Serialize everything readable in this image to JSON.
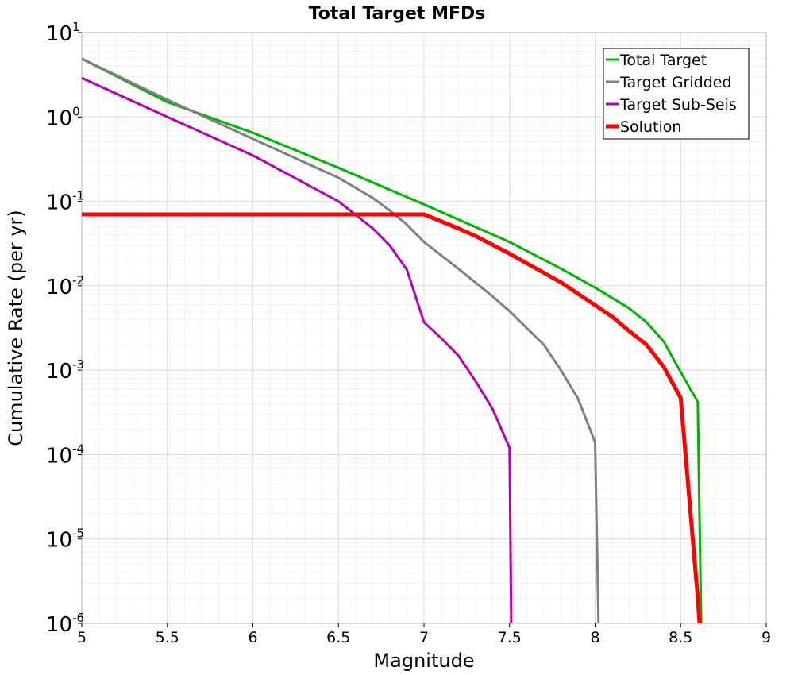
{
  "chart_data": {
    "type": "line",
    "title": "Total Target MFDs",
    "xlabel": "Magnitude",
    "ylabel": "Cumulative Rate (per yr)",
    "xlim": [
      5,
      9
    ],
    "ylim": [
      1e-06,
      10
    ],
    "yscale": "log",
    "grid": true,
    "legend_position": "top-right",
    "x_ticks": [
      "5",
      "5.5",
      "6",
      "6.5",
      "7",
      "7.5",
      "8",
      "8.5",
      "9"
    ],
    "y_ticks": [
      {
        "base": "10",
        "exp": "1"
      },
      {
        "base": "10",
        "exp": "0"
      },
      {
        "base": "10",
        "exp": "-1"
      },
      {
        "base": "10",
        "exp": "-2"
      },
      {
        "base": "10",
        "exp": "-3"
      },
      {
        "base": "10",
        "exp": "-4"
      },
      {
        "base": "10",
        "exp": "-5"
      },
      {
        "base": "10",
        "exp": "-6"
      }
    ],
    "series": [
      {
        "name": "Total Target",
        "color": "#00b400",
        "width": 3,
        "x": [
          5.0,
          5.5,
          6.0,
          6.5,
          7.0,
          7.5,
          7.8,
          8.0,
          8.2,
          8.3,
          8.4,
          8.5,
          8.6,
          8.62
        ],
        "y": [
          4.9,
          1.5,
          0.65,
          0.25,
          0.092,
          0.033,
          0.016,
          0.0095,
          0.0054,
          0.0037,
          0.0022,
          0.00095,
          0.00042,
          1e-06
        ]
      },
      {
        "name": "Target Gridded",
        "color": "#808080",
        "width": 3,
        "x": [
          5.0,
          5.5,
          6.0,
          6.5,
          6.7,
          6.8,
          6.9,
          7.0,
          7.2,
          7.4,
          7.5,
          7.7,
          7.8,
          7.9,
          8.0,
          8.02
        ],
        "y": [
          4.9,
          1.6,
          0.55,
          0.19,
          0.11,
          0.078,
          0.053,
          0.033,
          0.016,
          0.0075,
          0.005,
          0.002,
          0.001,
          0.00046,
          0.00014,
          1e-06
        ]
      },
      {
        "name": "Target Sub-Seis",
        "color": "#b400b4",
        "width": 3,
        "x": [
          5.0,
          5.5,
          6.0,
          6.5,
          6.7,
          6.8,
          6.9,
          7.0,
          7.1,
          7.2,
          7.3,
          7.4,
          7.5,
          7.51
        ],
        "y": [
          2.9,
          1.0,
          0.35,
          0.1,
          0.048,
          0.03,
          0.0155,
          0.0037,
          0.0024,
          0.0015,
          0.00075,
          0.00035,
          0.00012,
          1e-06
        ]
      },
      {
        "name": "Solution",
        "color": "#ff0000",
        "width": 5,
        "x": [
          5.0,
          7.0,
          7.1,
          7.2,
          7.3,
          7.5,
          7.6,
          7.8,
          8.0,
          8.1,
          8.2,
          8.3,
          8.4,
          8.5,
          8.6,
          8.61
        ],
        "y": [
          0.07,
          0.07,
          0.058,
          0.048,
          0.039,
          0.024,
          0.0185,
          0.011,
          0.0059,
          0.0043,
          0.0029,
          0.002,
          0.0011,
          0.00047,
          2e-06,
          1e-06
        ]
      }
    ]
  }
}
